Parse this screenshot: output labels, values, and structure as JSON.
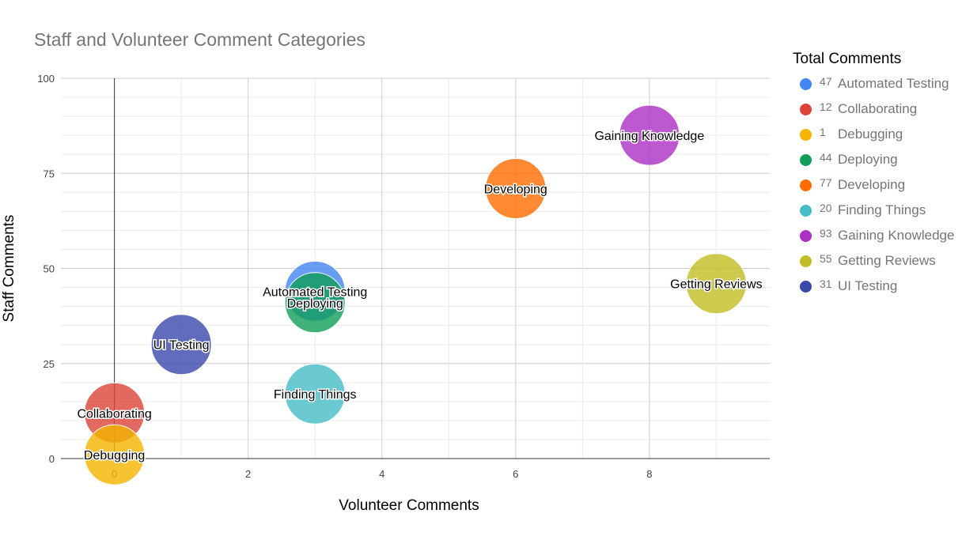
{
  "chart_data": {
    "type": "bubble",
    "title": "Staff and Volunteer Comment Categories",
    "xlabel": "Volunteer Comments",
    "ylabel": "Staff Comments",
    "xlim": [
      -0.8,
      9.8
    ],
    "ylim": [
      0,
      100
    ],
    "xticks": [
      0,
      2,
      4,
      6,
      8
    ],
    "yticks": [
      0,
      25,
      50,
      75,
      100
    ],
    "grid": true,
    "legend_title": "Total Comments",
    "legend_position": "right",
    "points": [
      {
        "name": "Automated Testing",
        "x": 3,
        "y": 44,
        "size": 47,
        "color": "#4285f4"
      },
      {
        "name": "Collaborating",
        "x": 0,
        "y": 12,
        "size": 12,
        "color": "#db4437"
      },
      {
        "name": "Debugging",
        "x": 0,
        "y": 1,
        "size": 1,
        "color": "#f4b400"
      },
      {
        "name": "Deploying",
        "x": 3,
        "y": 41,
        "size": 44,
        "color": "#0f9d58"
      },
      {
        "name": "Developing",
        "x": 6,
        "y": 71,
        "size": 77,
        "color": "#ff6d00"
      },
      {
        "name": "Finding Things",
        "x": 3,
        "y": 17,
        "size": 20,
        "color": "#46bdc6"
      },
      {
        "name": "Gaining Knowledge",
        "x": 8,
        "y": 85,
        "size": 93,
        "color": "#ab30c4"
      },
      {
        "name": "Getting Reviews",
        "x": 9,
        "y": 46,
        "size": 55,
        "color": "#c2bd22"
      },
      {
        "name": "UI Testing",
        "x": 1,
        "y": 30,
        "size": 31,
        "color": "#3949ab"
      }
    ]
  }
}
